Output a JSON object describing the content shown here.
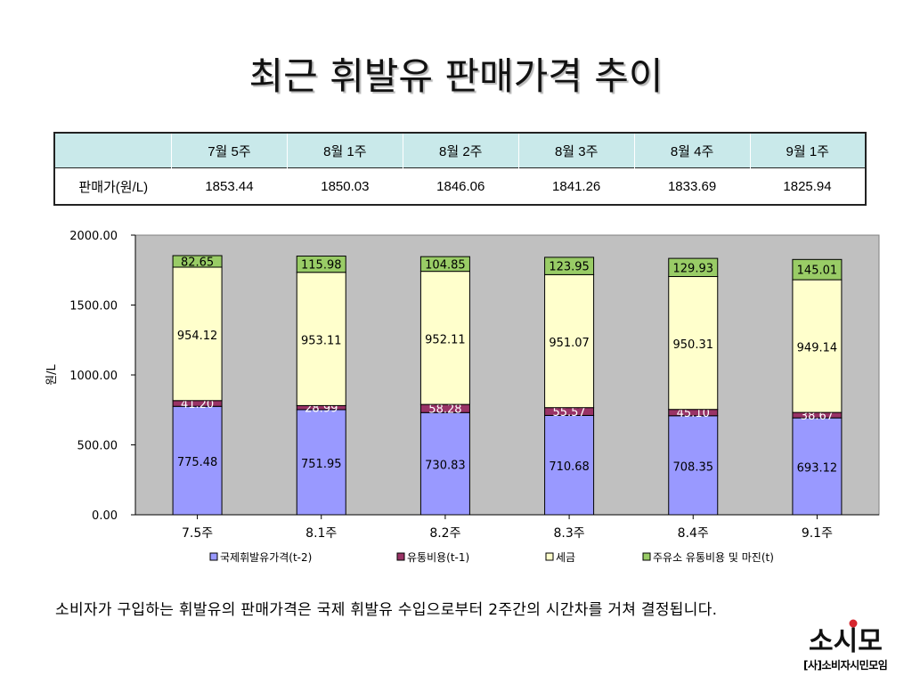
{
  "slide": {
    "title": "최근 휘발유 판매가격 추이",
    "footnote": "소비자가 구입하는 휘발유의 판매가격은 국제 휘발유 수입으로부터 2주간의 시간차를 거쳐 결정됩니다.",
    "logo_text": "소시모",
    "logo_caption": "[사]소비자시민모임"
  },
  "price_table": {
    "corner": "",
    "headers": [
      "7월 5주",
      "8월 1주",
      "8월 2주",
      "8월 3주",
      "8월 4주",
      "9월 1주"
    ],
    "row_label": "판매가(원/L)",
    "values": [
      "1853.44",
      "1850.03",
      "1846.06",
      "1841.26",
      "1833.69",
      "1825.94"
    ],
    "header_color": "#c9e9ea"
  },
  "chart_data": {
    "type": "bar",
    "stacked": true,
    "categories": [
      "7.5주",
      "8.1주",
      "8.2주",
      "8.3주",
      "8.4주",
      "9.1주"
    ],
    "ylabel": "원/L",
    "xlabel": "",
    "ylim": [
      0,
      2000
    ],
    "yticks": [
      "0.00",
      "500.00",
      "1000.00",
      "1500.00",
      "2000.00"
    ],
    "grid": false,
    "legend_position": "bottom",
    "plot_background": "#c0c0c0",
    "series": [
      {
        "name": "국제휘발유가격(t-2)",
        "color": "#9999ff",
        "label_color": "#000000",
        "values": [
          775.48,
          751.95,
          730.83,
          710.68,
          708.35,
          693.12
        ]
      },
      {
        "name": "유통비용(t-1)",
        "color": "#993366",
        "label_color": "#ffffff",
        "values": [
          41.2,
          28.99,
          58.28,
          55.57,
          45.1,
          38.67
        ]
      },
      {
        "name": "세금",
        "color": "#ffffcc",
        "label_color": "#000000",
        "values": [
          954.12,
          953.11,
          952.11,
          951.07,
          950.31,
          949.14
        ]
      },
      {
        "name": "주유소 유통비용 및 마진(t)",
        "color": "#99cc66",
        "label_color": "#000000",
        "values": [
          82.65,
          115.98,
          104.85,
          123.95,
          129.93,
          145.01
        ]
      }
    ]
  }
}
